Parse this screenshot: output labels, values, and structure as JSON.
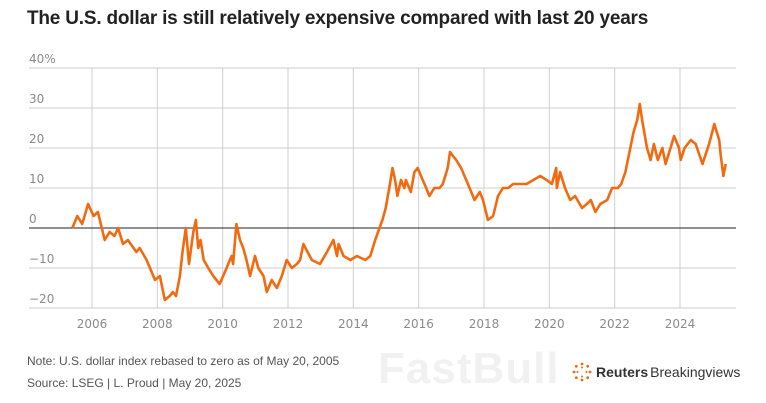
{
  "chart_data": {
    "type": "line",
    "title": "The U.S. dollar is still relatively expensive compared with last 20 years",
    "xlabel": "",
    "ylabel": "",
    "xlim": [
      2005.0,
      2025.7
    ],
    "ylim": [
      -20,
      40
    ],
    "y_ticks": [
      {
        "value": 40,
        "label": "40%"
      },
      {
        "value": 30,
        "label": "30"
      },
      {
        "value": 20,
        "label": "20"
      },
      {
        "value": 10,
        "label": "10"
      },
      {
        "value": 0,
        "label": "0"
      },
      {
        "value": -10,
        "label": "−10"
      },
      {
        "value": -20,
        "label": "−20"
      }
    ],
    "x_ticks": [
      {
        "value": 2006,
        "label": "2006"
      },
      {
        "value": 2008,
        "label": "2008"
      },
      {
        "value": 2010,
        "label": "2010"
      },
      {
        "value": 2012,
        "label": "2012"
      },
      {
        "value": 2014,
        "label": "2014"
      },
      {
        "value": 2016,
        "label": "2016"
      },
      {
        "value": 2018,
        "label": "2018"
      },
      {
        "value": 2020,
        "label": "2020"
      },
      {
        "value": 2022,
        "label": "2022"
      },
      {
        "value": 2024,
        "label": "2024"
      }
    ],
    "grid": true,
    "line_color": "#f26a10",
    "series": [
      {
        "points": [
          [
            2005.4,
            0
          ],
          [
            2005.55,
            3
          ],
          [
            2005.7,
            1
          ],
          [
            2005.88,
            6
          ],
          [
            2006.05,
            3
          ],
          [
            2006.18,
            4
          ],
          [
            2006.39,
            -3
          ],
          [
            2006.54,
            -1
          ],
          [
            2006.69,
            -2
          ],
          [
            2006.8,
            0
          ],
          [
            2006.95,
            -4
          ],
          [
            2007.1,
            -3
          ],
          [
            2007.36,
            -6
          ],
          [
            2007.46,
            -5
          ],
          [
            2007.67,
            -8
          ],
          [
            2007.93,
            -13
          ],
          [
            2008.08,
            -12
          ],
          [
            2008.23,
            -18
          ],
          [
            2008.38,
            -17
          ],
          [
            2008.48,
            -16
          ],
          [
            2008.57,
            -17
          ],
          [
            2008.69,
            -12
          ],
          [
            2008.77,
            -6
          ],
          [
            2008.87,
            0
          ],
          [
            2008.97,
            -9
          ],
          [
            2009.1,
            -1
          ],
          [
            2009.18,
            2
          ],
          [
            2009.25,
            -5
          ],
          [
            2009.32,
            -3
          ],
          [
            2009.42,
            -8
          ],
          [
            2009.56,
            -10
          ],
          [
            2009.71,
            -12
          ],
          [
            2009.91,
            -14
          ],
          [
            2010.12,
            -10
          ],
          [
            2010.27,
            -7
          ],
          [
            2010.32,
            -9
          ],
          [
            2010.42,
            1
          ],
          [
            2010.53,
            -3
          ],
          [
            2010.63,
            -5
          ],
          [
            2010.73,
            -8
          ],
          [
            2010.84,
            -12
          ],
          [
            2010.99,
            -7
          ],
          [
            2011.09,
            -10
          ],
          [
            2011.25,
            -12
          ],
          [
            2011.35,
            -16
          ],
          [
            2011.5,
            -13
          ],
          [
            2011.66,
            -15
          ],
          [
            2011.81,
            -12
          ],
          [
            2011.96,
            -8
          ],
          [
            2012.12,
            -10
          ],
          [
            2012.27,
            -9
          ],
          [
            2012.37,
            -8
          ],
          [
            2012.47,
            -4
          ],
          [
            2012.73,
            -8
          ],
          [
            2012.98,
            -9
          ],
          [
            2013.19,
            -6
          ],
          [
            2013.39,
            -3
          ],
          [
            2013.5,
            -7
          ],
          [
            2013.55,
            -4
          ],
          [
            2013.7,
            -7
          ],
          [
            2013.91,
            -8
          ],
          [
            2014.11,
            -7
          ],
          [
            2014.37,
            -8
          ],
          [
            2014.52,
            -7
          ],
          [
            2014.67,
            -3
          ],
          [
            2014.8,
            0
          ],
          [
            2014.89,
            2
          ],
          [
            2014.99,
            5
          ],
          [
            2015.1,
            10
          ],
          [
            2015.2,
            15
          ],
          [
            2015.28,
            12
          ],
          [
            2015.35,
            8
          ],
          [
            2015.46,
            12
          ],
          [
            2015.56,
            10
          ],
          [
            2015.61,
            12
          ],
          [
            2015.76,
            9
          ],
          [
            2015.87,
            14
          ],
          [
            2015.97,
            15
          ],
          [
            2016.07,
            13
          ],
          [
            2016.23,
            10
          ],
          [
            2016.33,
            8
          ],
          [
            2016.48,
            10
          ],
          [
            2016.64,
            10
          ],
          [
            2016.74,
            11
          ],
          [
            2016.89,
            15
          ],
          [
            2016.96,
            19
          ],
          [
            2017.15,
            17
          ],
          [
            2017.3,
            15
          ],
          [
            2017.56,
            10
          ],
          [
            2017.71,
            7
          ],
          [
            2017.87,
            9
          ],
          [
            2017.97,
            7
          ],
          [
            2018.12,
            2
          ],
          [
            2018.28,
            3
          ],
          [
            2018.43,
            8
          ],
          [
            2018.58,
            10
          ],
          [
            2018.74,
            10
          ],
          [
            2018.89,
            11
          ],
          [
            2019.1,
            11
          ],
          [
            2019.3,
            11
          ],
          [
            2019.51,
            12
          ],
          [
            2019.72,
            13
          ],
          [
            2019.92,
            12
          ],
          [
            2020.08,
            11
          ],
          [
            2020.21,
            15
          ],
          [
            2020.23,
            10
          ],
          [
            2020.33,
            14
          ],
          [
            2020.48,
            10
          ],
          [
            2020.64,
            7
          ],
          [
            2020.79,
            8
          ],
          [
            2021.0,
            5
          ],
          [
            2021.15,
            6
          ],
          [
            2021.27,
            7
          ],
          [
            2021.41,
            4
          ],
          [
            2021.56,
            6
          ],
          [
            2021.77,
            7
          ],
          [
            2021.92,
            10
          ],
          [
            2022.1,
            10
          ],
          [
            2022.2,
            11
          ],
          [
            2022.33,
            14
          ],
          [
            2022.48,
            20
          ],
          [
            2022.58,
            24
          ],
          [
            2022.69,
            27
          ],
          [
            2022.77,
            31
          ],
          [
            2022.84,
            27
          ],
          [
            2022.99,
            20
          ],
          [
            2023.1,
            17
          ],
          [
            2023.2,
            21
          ],
          [
            2023.32,
            17
          ],
          [
            2023.46,
            20
          ],
          [
            2023.56,
            16
          ],
          [
            2023.71,
            20
          ],
          [
            2023.82,
            23
          ],
          [
            2023.97,
            20
          ],
          [
            2024.02,
            17
          ],
          [
            2024.14,
            20
          ],
          [
            2024.33,
            22
          ],
          [
            2024.48,
            21
          ],
          [
            2024.69,
            16
          ],
          [
            2024.89,
            21
          ],
          [
            2025.05,
            26
          ],
          [
            2025.2,
            22
          ],
          [
            2025.25,
            18
          ],
          [
            2025.33,
            13
          ],
          [
            2025.4,
            16
          ]
        ]
      }
    ]
  },
  "footer": {
    "note": "Note: U.S. dollar index rebased to zero as of May 20, 2005",
    "source": "Source: LSEG | L. Proud | May 20, 2025",
    "logo_bold": "Reuters",
    "logo_light": "Breakingviews",
    "watermark": "FastBull"
  }
}
